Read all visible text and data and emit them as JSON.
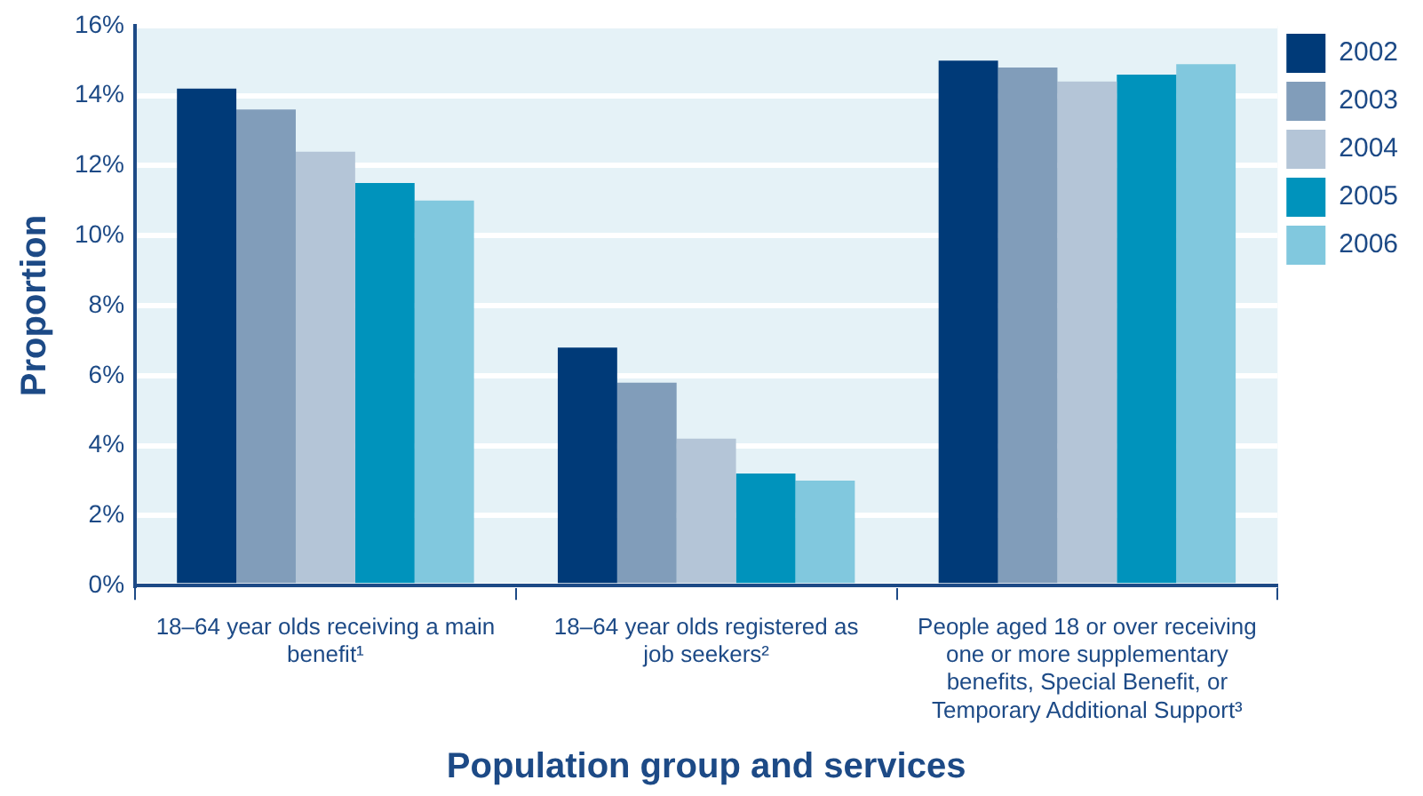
{
  "chart_data": {
    "type": "bar",
    "xlabel": "Population group and services",
    "ylabel": "Proportion",
    "categories": [
      "18–64 year olds receiving a main benefit¹",
      "18–64 year olds registered as job seekers²",
      "People aged 18 or over receiving one or more supplementary benefits, Special Benefit, or Temporary Additional Support³"
    ],
    "series": [
      {
        "name": "2002",
        "color": "#003a78",
        "values": [
          14.2,
          6.8,
          15.0
        ]
      },
      {
        "name": "2003",
        "color": "#819dba",
        "values": [
          13.6,
          5.8,
          14.8
        ]
      },
      {
        "name": "2004",
        "color": "#b4c5d7",
        "values": [
          12.4,
          4.2,
          14.4
        ]
      },
      {
        "name": "2005",
        "color": "#0093bc",
        "values": [
          11.5,
          3.2,
          14.6
        ]
      },
      {
        "name": "2006",
        "color": "#81c8de",
        "values": [
          11.0,
          3.0,
          14.9
        ]
      }
    ],
    "ylim": [
      0,
      16
    ],
    "yticks": [
      {
        "value": 0,
        "label": "0%"
      },
      {
        "value": 2,
        "label": "2%"
      },
      {
        "value": 4,
        "label": "4%"
      },
      {
        "value": 6,
        "label": "6%"
      },
      {
        "value": 8,
        "label": "8%"
      },
      {
        "value": 10,
        "label": "10%"
      },
      {
        "value": 12,
        "label": "12%"
      },
      {
        "value": 14,
        "label": "14%"
      },
      {
        "value": 16,
        "label": "16%"
      }
    ],
    "grid": "y",
    "legend": "top right"
  }
}
